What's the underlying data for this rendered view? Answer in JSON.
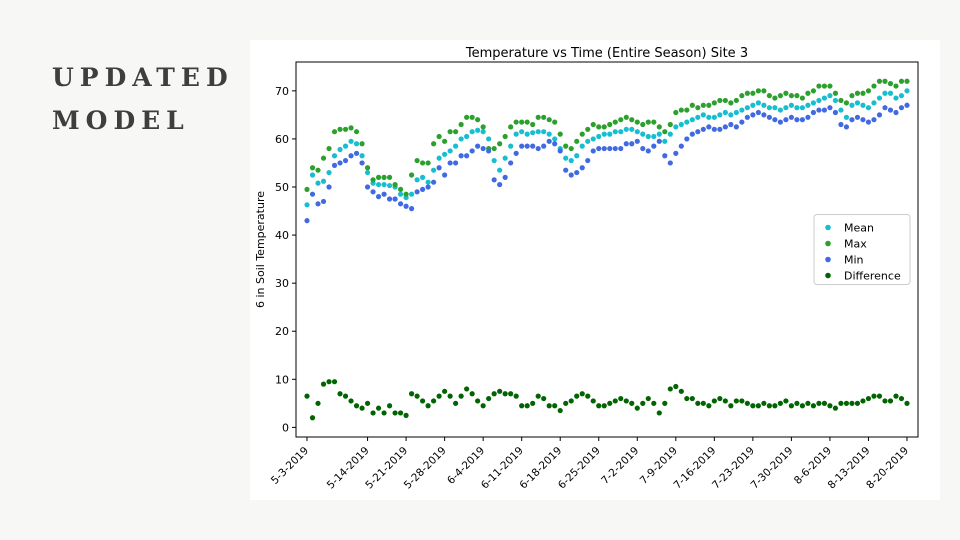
{
  "slide": {
    "title_line1": "UPDATED",
    "title_line2": "MODEL"
  },
  "chart_data": {
    "type": "scatter",
    "title": "Temperature vs Time (Entire Season) Site 3",
    "xlabel": "",
    "ylabel": "6 in Soil Temperature",
    "ylim": [
      -2,
      76
    ],
    "yticks": [
      0,
      10,
      20,
      30,
      40,
      50,
      60,
      70
    ],
    "xlim": [
      "2019-05-01",
      "2019-08-22"
    ],
    "xticks": [
      "2019-05-03",
      "2019-05-14",
      "2019-05-21",
      "2019-05-28",
      "2019-06-04",
      "2019-06-11",
      "2019-06-18",
      "2019-06-25",
      "2019-07-02",
      "2019-07-09",
      "2019-07-16",
      "2019-07-23",
      "2019-07-30",
      "2019-08-06",
      "2019-08-13",
      "2019-08-20"
    ],
    "xticklabels": [
      "5-3-2019",
      "5-14-2019",
      "5-21-2019",
      "5-28-2019",
      "6-4-2019",
      "6-11-2019",
      "6-18-2019",
      "6-25-2019",
      "7-2-2019",
      "7-9-2019",
      "7-16-2019",
      "7-23-2019",
      "7-30-2019",
      "8-6-2019",
      "8-13-2019",
      "8-20-2019"
    ],
    "legend_position": "center-right",
    "grid": false,
    "x": [
      "2019-05-03",
      "2019-05-04",
      "2019-05-05",
      "2019-05-06",
      "2019-05-07",
      "2019-05-08",
      "2019-05-09",
      "2019-05-10",
      "2019-05-11",
      "2019-05-12",
      "2019-05-13",
      "2019-05-14",
      "2019-05-15",
      "2019-05-16",
      "2019-05-17",
      "2019-05-18",
      "2019-05-19",
      "2019-05-20",
      "2019-05-21",
      "2019-05-22",
      "2019-05-23",
      "2019-05-24",
      "2019-05-25",
      "2019-05-26",
      "2019-05-27",
      "2019-05-28",
      "2019-05-29",
      "2019-05-30",
      "2019-05-31",
      "2019-06-01",
      "2019-06-02",
      "2019-06-03",
      "2019-06-04",
      "2019-06-05",
      "2019-06-06",
      "2019-06-07",
      "2019-06-08",
      "2019-06-09",
      "2019-06-10",
      "2019-06-11",
      "2019-06-12",
      "2019-06-13",
      "2019-06-14",
      "2019-06-15",
      "2019-06-16",
      "2019-06-17",
      "2019-06-18",
      "2019-06-19",
      "2019-06-20",
      "2019-06-21",
      "2019-06-22",
      "2019-06-23",
      "2019-06-24",
      "2019-06-25",
      "2019-06-26",
      "2019-06-27",
      "2019-06-28",
      "2019-06-29",
      "2019-06-30",
      "2019-07-01",
      "2019-07-02",
      "2019-07-03",
      "2019-07-04",
      "2019-07-05",
      "2019-07-06",
      "2019-07-07",
      "2019-07-08",
      "2019-07-09",
      "2019-07-10",
      "2019-07-11",
      "2019-07-12",
      "2019-07-13",
      "2019-07-14",
      "2019-07-15",
      "2019-07-16",
      "2019-07-17",
      "2019-07-18",
      "2019-07-19",
      "2019-07-20",
      "2019-07-21",
      "2019-07-22",
      "2019-07-23",
      "2019-07-24",
      "2019-07-25",
      "2019-07-26",
      "2019-07-27",
      "2019-07-28",
      "2019-07-29",
      "2019-07-30",
      "2019-07-31",
      "2019-08-01",
      "2019-08-02",
      "2019-08-03",
      "2019-08-04",
      "2019-08-05",
      "2019-08-06",
      "2019-08-07",
      "2019-08-08",
      "2019-08-09",
      "2019-08-10",
      "2019-08-11",
      "2019-08-12",
      "2019-08-13",
      "2019-08-14",
      "2019-08-15",
      "2019-08-16",
      "2019-08-17",
      "2019-08-18",
      "2019-08-19",
      "2019-08-20"
    ],
    "series": [
      {
        "name": "Mean",
        "color": "#17becf",
        "values": [
          46.3,
          52.5,
          50.8,
          51.2,
          53.0,
          56.5,
          57.8,
          58.5,
          59.5,
          59.0,
          56.5,
          53.0,
          50.8,
          50.5,
          50.5,
          50.3,
          50.0,
          48.5,
          47.8,
          48.5,
          51.5,
          52.0,
          51.0,
          53.5,
          56.0,
          56.8,
          57.5,
          58.5,
          60.0,
          60.5,
          61.5,
          61.8,
          61.5,
          60.0,
          55.5,
          53.5,
          56.0,
          58.5,
          61.0,
          61.5,
          61.0,
          61.3,
          61.5,
          61.5,
          61.0,
          60.0,
          58.0,
          56.0,
          55.5,
          56.5,
          58.5,
          59.5,
          60.0,
          60.5,
          61.0,
          61.0,
          61.5,
          61.5,
          62.0,
          62.0,
          61.5,
          61.0,
          60.5,
          60.5,
          61.0,
          59.5,
          61.0,
          62.5,
          63.0,
          63.5,
          64.0,
          64.5,
          65.0,
          64.5,
          64.5,
          65.0,
          65.5,
          65.0,
          65.5,
          66.0,
          66.5,
          67.0,
          67.5,
          67.0,
          66.5,
          66.5,
          66.0,
          66.5,
          67.0,
          66.5,
          66.5,
          67.0,
          67.5,
          68.0,
          68.5,
          69.0,
          68.0,
          66.0,
          64.5,
          67.0,
          67.5,
          67.0,
          66.5,
          67.5,
          68.5,
          69.5,
          69.5,
          68.5,
          69.0,
          70.0
        ]
      },
      {
        "name": "Max",
        "color": "#2ca02c",
        "values": [
          49.5,
          54.0,
          53.5,
          56.0,
          58.0,
          61.5,
          62.0,
          62.0,
          62.3,
          61.5,
          59.0,
          54.0,
          51.5,
          52.0,
          52.0,
          52.0,
          50.5,
          49.5,
          48.5,
          52.5,
          55.5,
          55.0,
          55.0,
          59.0,
          60.5,
          59.5,
          61.5,
          61.5,
          63.0,
          64.5,
          64.5,
          64.0,
          62.5,
          58.0,
          58.0,
          59.0,
          60.5,
          62.5,
          63.5,
          63.5,
          63.5,
          63.0,
          64.5,
          64.5,
          64.0,
          63.5,
          61.0,
          58.5,
          58.0,
          59.5,
          61.0,
          62.0,
          63.0,
          62.5,
          62.5,
          63.0,
          63.5,
          64.0,
          64.5,
          64.0,
          63.5,
          63.0,
          63.5,
          63.5,
          62.5,
          61.5,
          63.0,
          65.5,
          66.0,
          66.0,
          67.0,
          66.5,
          67.0,
          67.0,
          67.5,
          68.0,
          68.0,
          67.5,
          68.0,
          69.0,
          69.5,
          69.5,
          70.0,
          70.0,
          69.0,
          68.5,
          69.0,
          69.5,
          69.0,
          69.0,
          68.5,
          69.5,
          70.0,
          71.0,
          71.0,
          71.0,
          69.5,
          68.0,
          67.5,
          69.0,
          69.5,
          69.5,
          70.0,
          71.0,
          72.0,
          72.0,
          71.5,
          71.0,
          72.0,
          72.0
        ]
      },
      {
        "name": "Min",
        "color": "#4169e1",
        "values": [
          43.0,
          48.5,
          46.5,
          47.0,
          50.0,
          54.5,
          55.0,
          55.5,
          56.5,
          57.0,
          55.0,
          50.0,
          49.0,
          48.0,
          48.5,
          47.5,
          47.5,
          46.5,
          46.0,
          45.5,
          49.0,
          49.5,
          50.0,
          51.0,
          54.0,
          52.5,
          55.0,
          55.0,
          56.5,
          56.5,
          57.5,
          58.5,
          58.0,
          57.5,
          51.5,
          50.5,
          52.0,
          55.0,
          57.0,
          58.5,
          58.5,
          58.5,
          58.0,
          58.5,
          59.5,
          59.0,
          57.5,
          53.5,
          52.5,
          53.0,
          54.0,
          55.5,
          57.5,
          58.0,
          58.0,
          58.0,
          58.0,
          58.0,
          59.0,
          59.0,
          59.5,
          58.0,
          57.5,
          58.5,
          59.5,
          56.5,
          55.0,
          57.0,
          58.5,
          60.0,
          61.0,
          61.5,
          62.0,
          62.5,
          62.0,
          62.0,
          62.5,
          63.0,
          62.5,
          63.5,
          64.5,
          65.0,
          65.5,
          65.0,
          64.5,
          64.0,
          63.5,
          64.0,
          64.5,
          64.0,
          64.0,
          64.5,
          65.5,
          66.0,
          66.0,
          66.5,
          65.5,
          63.0,
          62.5,
          64.0,
          64.5,
          64.0,
          63.5,
          64.0,
          65.0,
          66.5,
          66.0,
          65.5,
          66.5,
          67.0
        ]
      },
      {
        "name": "Difference",
        "color": "#006400",
        "values": [
          6.5,
          2.0,
          5.0,
          9.0,
          9.5,
          9.5,
          7.0,
          6.5,
          5.5,
          4.5,
          4.0,
          5.0,
          3.0,
          4.0,
          3.0,
          4.5,
          3.0,
          3.0,
          2.5,
          7.0,
          6.5,
          5.5,
          4.5,
          5.5,
          6.5,
          7.5,
          6.5,
          5.0,
          6.5,
          8.0,
          7.0,
          5.5,
          4.5,
          6.0,
          7.0,
          7.5,
          7.0,
          7.0,
          6.5,
          4.5,
          4.5,
          5.0,
          6.5,
          6.0,
          4.5,
          4.5,
          3.5,
          5.0,
          5.5,
          6.5,
          7.0,
          6.5,
          5.5,
          4.5,
          4.5,
          5.0,
          5.5,
          6.0,
          5.5,
          5.0,
          4.0,
          5.0,
          6.0,
          5.0,
          3.0,
          5.0,
          8.0,
          8.5,
          7.5,
          6.0,
          6.0,
          5.0,
          5.0,
          4.5,
          5.5,
          6.0,
          5.5,
          4.5,
          5.5,
          5.5,
          5.0,
          4.5,
          4.5,
          5.0,
          4.5,
          4.5,
          5.0,
          5.5,
          4.5,
          5.0,
          4.5,
          5.0,
          4.5,
          5.0,
          5.0,
          4.5,
          4.0,
          5.0,
          5.0,
          5.0,
          5.0,
          5.5,
          6.0,
          6.5,
          6.5,
          5.5,
          5.5,
          6.5,
          6.0,
          5.0
        ]
      }
    ]
  }
}
